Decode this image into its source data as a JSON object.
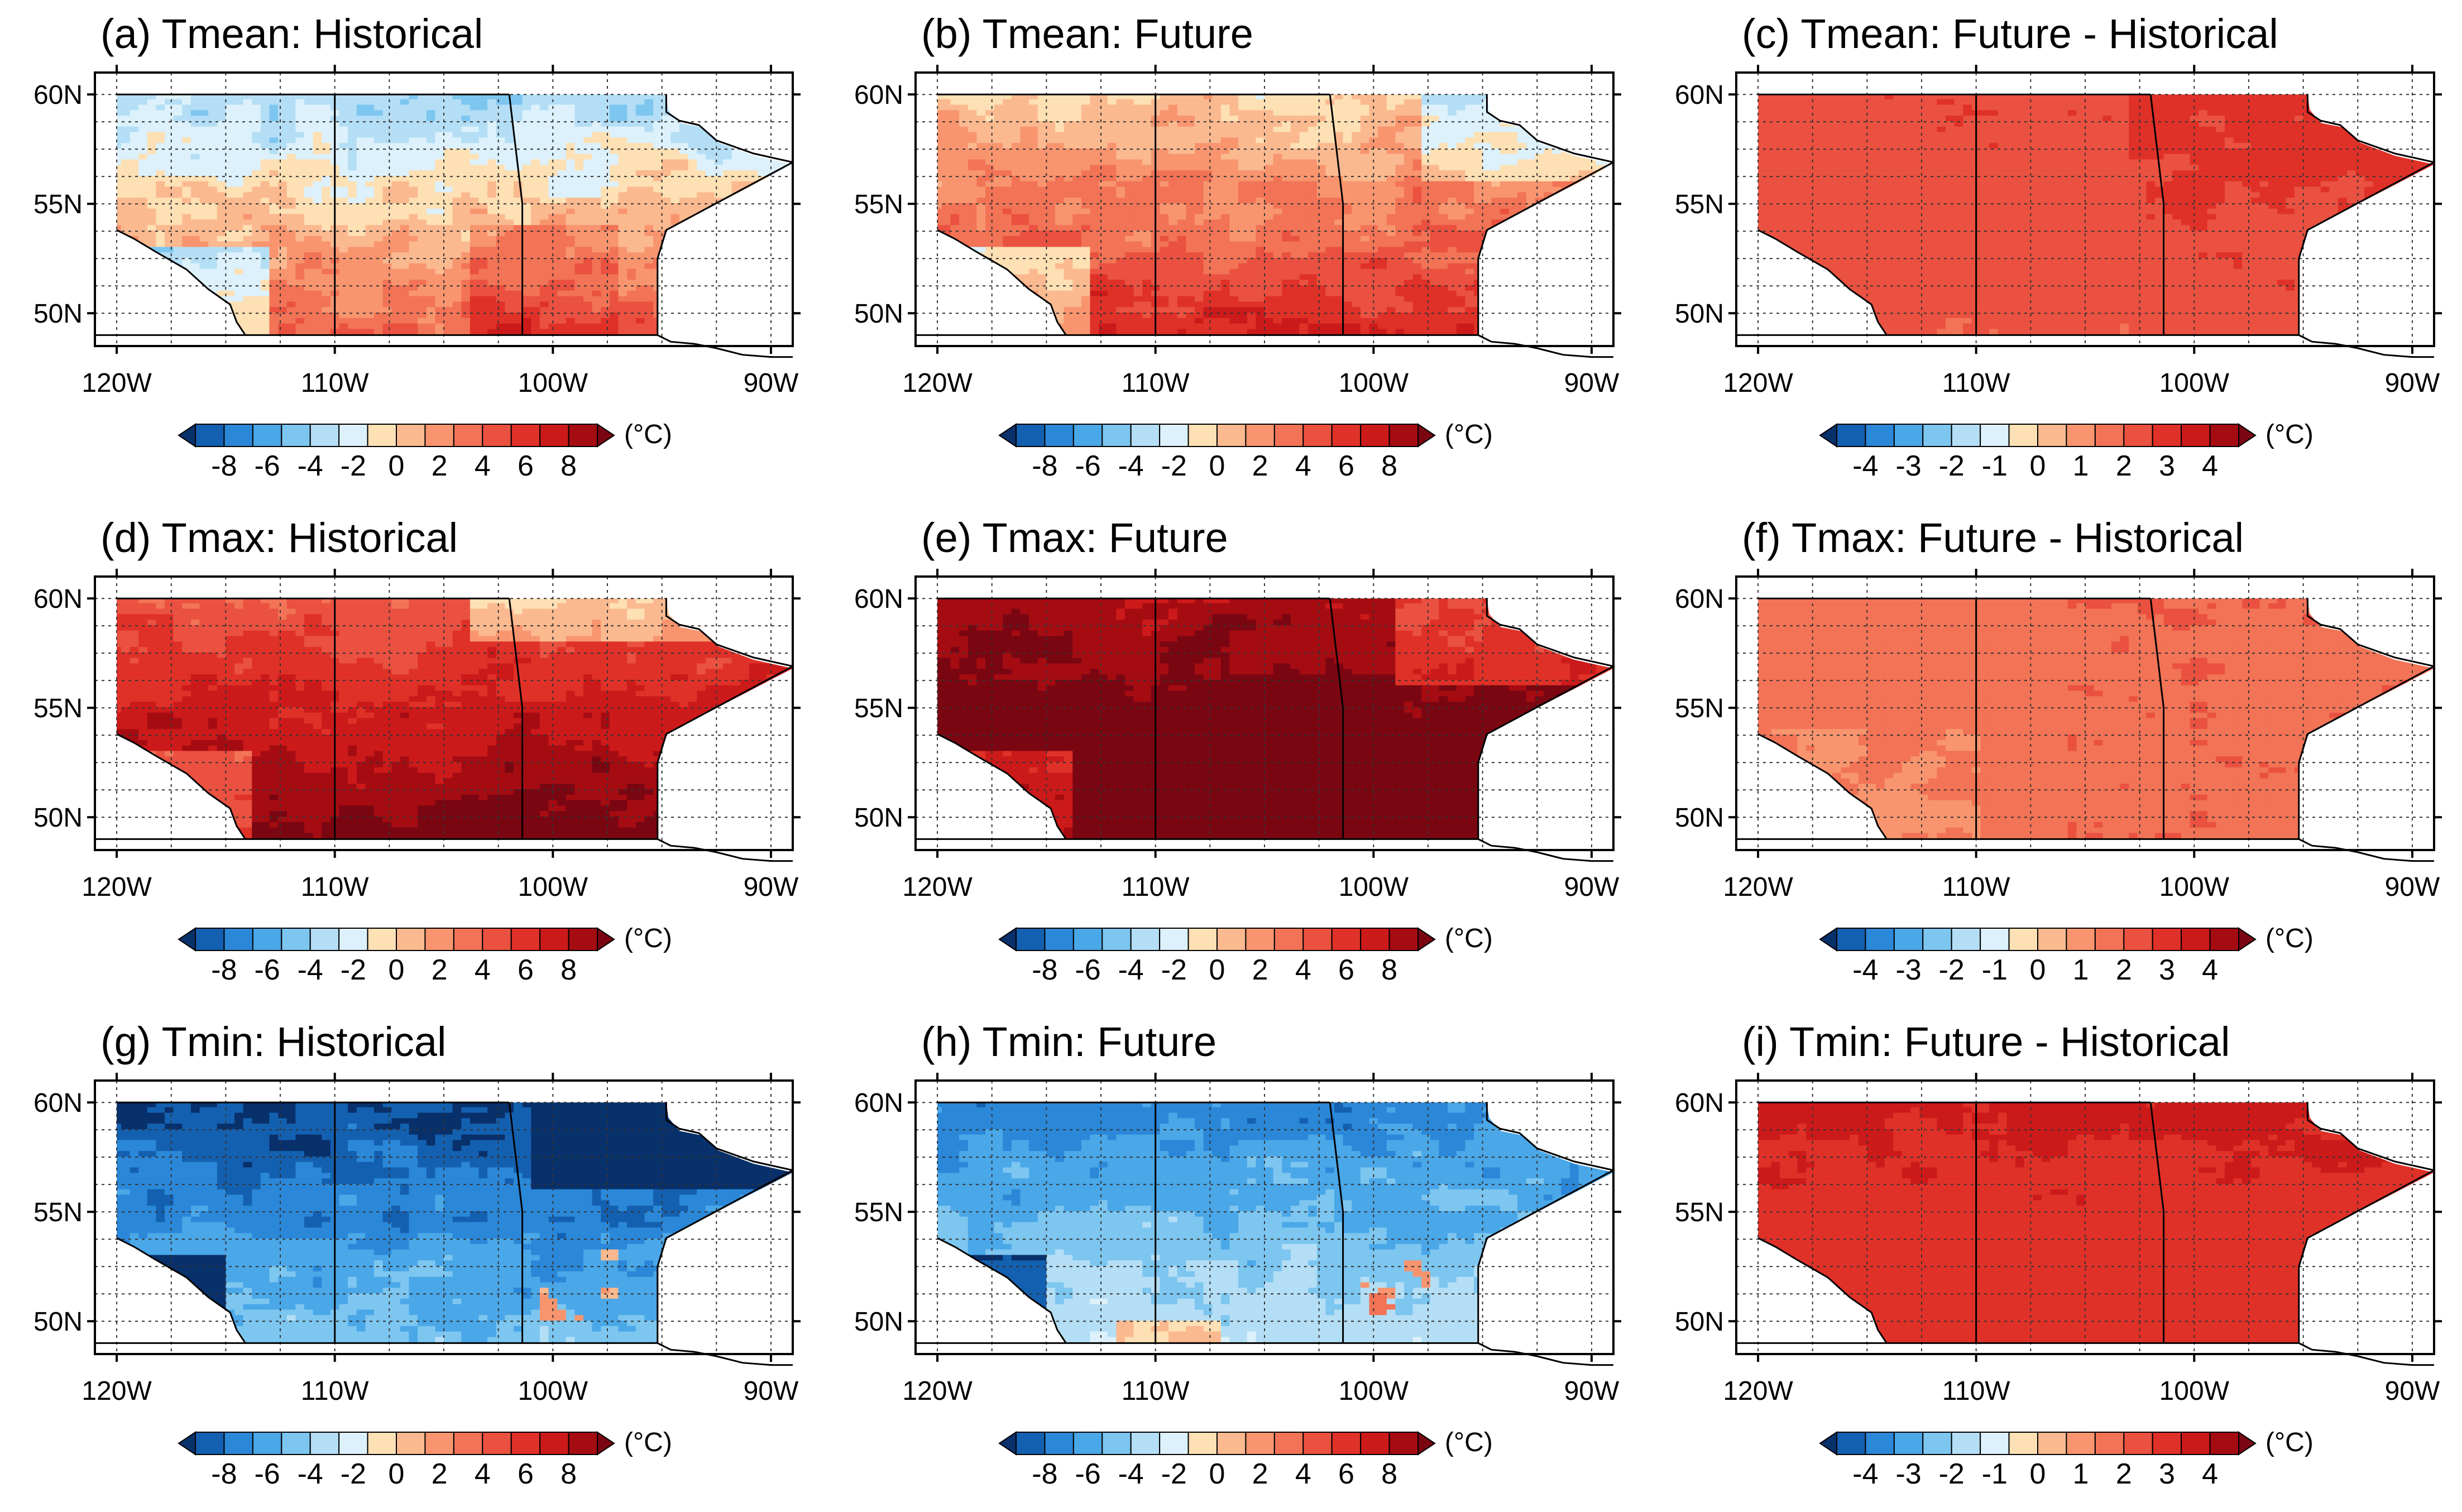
{
  "figure": {
    "lat_labels": [
      "60N",
      "55N",
      "50N"
    ],
    "lon_labels": [
      "120W",
      "110W",
      "100W",
      "90W"
    ],
    "unit": "(°C)",
    "colors": {
      "abs_scale": [
        "#08306b",
        "#1460b0",
        "#2b87d8",
        "#4aa7e8",
        "#7cc6f0",
        "#b4def5",
        "#dcf1fb",
        "#fde0b4",
        "#fbb990",
        "#f8956f",
        "#f27356",
        "#ea5140",
        "#df3128",
        "#cc1a1a",
        "#a50c12",
        "#7a0612"
      ],
      "diff_scale": [
        "#08306b",
        "#1460b0",
        "#2b87d8",
        "#4aa7e8",
        "#7cc6f0",
        "#b4def5",
        "#dcf1fb",
        "#fde0b4",
        "#fbb990",
        "#f8956f",
        "#f27356",
        "#ea5140",
        "#df3128",
        "#cc1a1a",
        "#a50c12",
        "#7a0612"
      ]
    }
  },
  "chart_data": [
    {
      "type": "heatmap",
      "panel": "a",
      "title": "(a) Tmean: Historical",
      "variable": "Tmean",
      "period": "Historical",
      "colorbar_ticks": [
        "-8",
        "-6",
        "-4",
        "-2",
        "0",
        "2",
        "4",
        "6",
        "8"
      ],
      "xlim": [
        -121,
        -89
      ],
      "ylim": [
        48.5,
        61
      ],
      "xlabel": "",
      "ylabel": "",
      "pattern": "mixed: cool north (-2 to -4), warm south (2 to 4)"
    },
    {
      "type": "heatmap",
      "panel": "b",
      "title": "(b) Tmean: Future",
      "variable": "Tmean",
      "period": "Future",
      "colorbar_ticks": [
        "-8",
        "-6",
        "-4",
        "-2",
        "0",
        "2",
        "4",
        "6",
        "8"
      ],
      "xlim": [
        -121,
        -89
      ],
      "ylim": [
        48.5,
        61
      ],
      "pattern": "mostly warm (1 to 4), slight cool in northeast"
    },
    {
      "type": "heatmap",
      "panel": "c",
      "title": "(c) Tmean: Future - Historical",
      "variable": "Tmean",
      "period": "Future - Historical",
      "colorbar_ticks": [
        "-4",
        "-3",
        "-2",
        "-1",
        "0",
        "1",
        "2",
        "3",
        "4"
      ],
      "xlim": [
        -121,
        -89
      ],
      "ylim": [
        48.5,
        61
      ],
      "pattern": "uniform warming about 1.5 to 2"
    },
    {
      "type": "heatmap",
      "panel": "d",
      "title": "(d) Tmax: Historical",
      "variable": "Tmax",
      "period": "Historical",
      "colorbar_ticks": [
        "-8",
        "-6",
        "-4",
        "-2",
        "0",
        "2",
        "4",
        "6",
        "8"
      ],
      "xlim": [
        -121,
        -89
      ],
      "ylim": [
        48.5,
        61
      ],
      "pattern": "warm (4 to 8), cooler in northeast"
    },
    {
      "type": "heatmap",
      "panel": "e",
      "title": "(e) Tmax: Future",
      "variable": "Tmax",
      "period": "Future",
      "colorbar_ticks": [
        "-8",
        "-6",
        "-4",
        "-2",
        "0",
        "2",
        "4",
        "6",
        "8"
      ],
      "xlim": [
        -121,
        -89
      ],
      "ylim": [
        48.5,
        61
      ],
      "pattern": "hot (6 to 8+), darkest in south"
    },
    {
      "type": "heatmap",
      "panel": "f",
      "title": "(f) Tmax: Future - Historical",
      "variable": "Tmax",
      "period": "Future - Historical",
      "colorbar_ticks": [
        "-4",
        "-3",
        "-2",
        "-1",
        "0",
        "1",
        "2",
        "3",
        "4"
      ],
      "xlim": [
        -121,
        -89
      ],
      "ylim": [
        48.5,
        61
      ],
      "pattern": "uniform warming about 1 to 2"
    },
    {
      "type": "heatmap",
      "panel": "g",
      "title": "(g) Tmin: Historical",
      "variable": "Tmin",
      "period": "Historical",
      "colorbar_ticks": [
        "-8",
        "-6",
        "-4",
        "-2",
        "0",
        "2",
        "4",
        "6",
        "8"
      ],
      "xlim": [
        -121,
        -89
      ],
      "ylim": [
        48.5,
        61
      ],
      "pattern": "cold (-2 to -8), coldest northeast and west edge"
    },
    {
      "type": "heatmap",
      "panel": "h",
      "title": "(h) Tmin: Future",
      "variable": "Tmin",
      "period": "Future",
      "colorbar_ticks": [
        "-8",
        "-6",
        "-4",
        "-2",
        "0",
        "2",
        "4",
        "6",
        "8"
      ],
      "xlim": [
        -121,
        -89
      ],
      "ylim": [
        48.5,
        61
      ],
      "pattern": "cold (-1 to -6), milder than historical"
    },
    {
      "type": "heatmap",
      "panel": "i",
      "title": "(i) Tmin: Future - Historical",
      "variable": "Tmin",
      "period": "Future - Historical",
      "colorbar_ticks": [
        "-4",
        "-3",
        "-2",
        "-1",
        "0",
        "1",
        "2",
        "3",
        "4"
      ],
      "xlim": [
        -121,
        -89
      ],
      "ylim": [
        48.5,
        61
      ],
      "pattern": "uniform warming about 2 to 2.5"
    }
  ]
}
